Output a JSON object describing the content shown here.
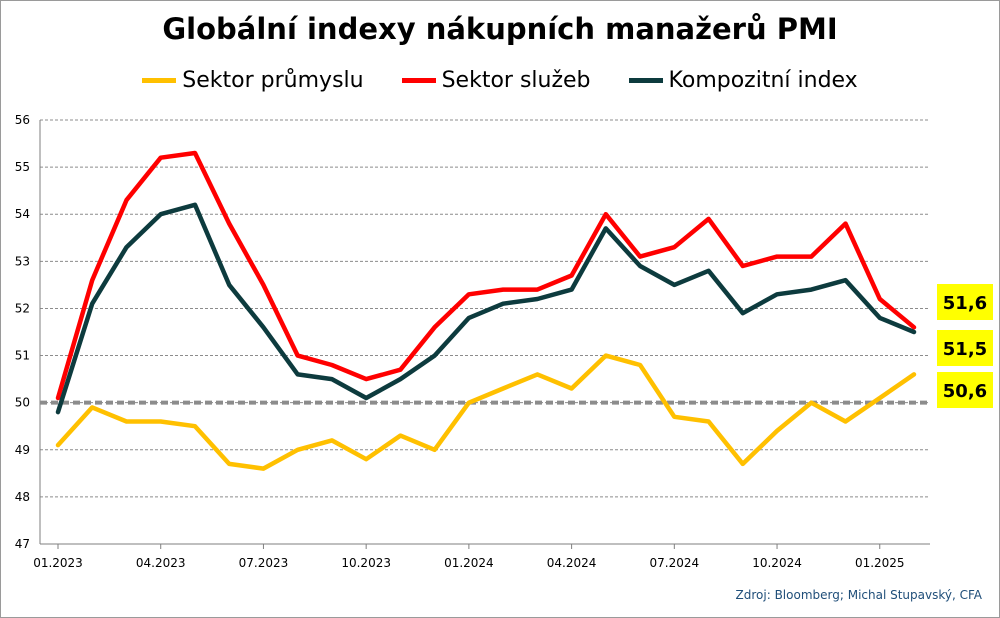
{
  "chart_data": {
    "type": "line",
    "title": "Globální indexy nákupních manažerů PMI",
    "xlabel": "",
    "ylabel": "",
    "ylim": [
      47,
      56
    ],
    "y_ticks": [
      "47",
      "48",
      "49",
      "50",
      "51",
      "52",
      "53",
      "54",
      "55",
      "56"
    ],
    "x_tick_labels": [
      "01.2023",
      "04.2023",
      "07.2023",
      "10.2023",
      "01.2024",
      "04.2024",
      "07.2024",
      "10.2024",
      "01.2025"
    ],
    "reference_line": {
      "y": 50,
      "style": "dashed"
    },
    "grid": true,
    "legend_position": "top",
    "x": [
      "01.2023",
      "02.2023",
      "03.2023",
      "04.2023",
      "05.2023",
      "06.2023",
      "07.2023",
      "08.2023",
      "09.2023",
      "10.2023",
      "11.2023",
      "12.2023",
      "01.2024",
      "02.2024",
      "03.2024",
      "04.2024",
      "05.2024",
      "06.2024",
      "07.2024",
      "08.2024",
      "09.2024",
      "10.2024",
      "11.2024",
      "12.2024",
      "01.2025",
      "02.2025"
    ],
    "series": [
      {
        "name": "Sektor průmyslu",
        "color": "#FFC000",
        "values": [
          49.1,
          49.9,
          49.6,
          49.6,
          49.5,
          48.7,
          48.6,
          49.0,
          49.2,
          48.8,
          49.3,
          49.0,
          50.0,
          50.3,
          50.6,
          50.3,
          51.0,
          50.8,
          49.7,
          49.6,
          48.7,
          49.4,
          50.0,
          49.6,
          50.1,
          50.6
        ],
        "end_label": "50,6"
      },
      {
        "name": "Sektor služeb",
        "color": "#FF0000",
        "values": [
          50.1,
          52.6,
          54.3,
          55.2,
          55.3,
          53.8,
          52.5,
          51.0,
          50.8,
          50.5,
          50.7,
          51.6,
          52.3,
          52.4,
          52.4,
          52.7,
          54.0,
          53.1,
          53.3,
          53.9,
          52.9,
          53.1,
          53.1,
          53.8,
          52.2,
          51.6
        ],
        "end_label": "51,6"
      },
      {
        "name": "Kompozitní index",
        "color": "#0D3B3E",
        "values": [
          49.8,
          52.1,
          53.3,
          54.0,
          54.2,
          52.5,
          51.6,
          50.6,
          50.5,
          50.1,
          50.5,
          51.0,
          51.8,
          52.1,
          52.2,
          52.4,
          53.7,
          52.9,
          52.5,
          52.8,
          51.9,
          52.3,
          52.4,
          52.6,
          51.8,
          51.5
        ],
        "end_label": "51,5"
      }
    ],
    "end_label_color": "#FFFF00"
  },
  "source": "Zdroj: Bloomberg; Michal Stupavský, CFA"
}
